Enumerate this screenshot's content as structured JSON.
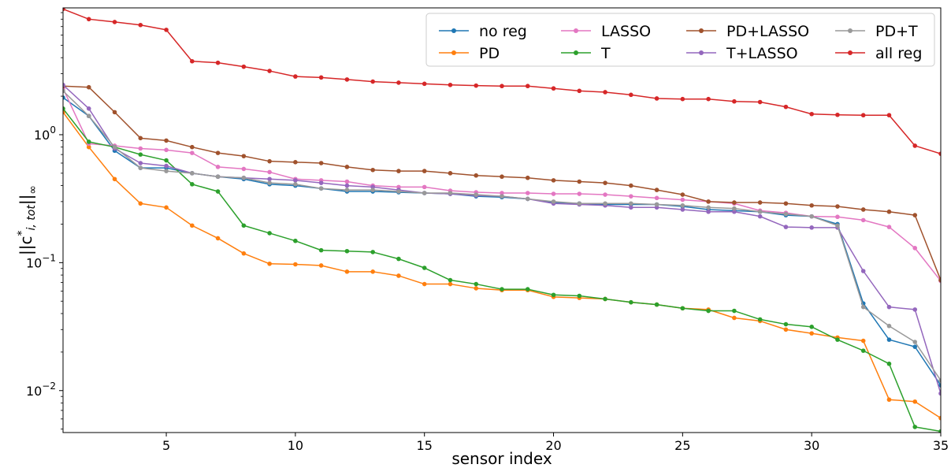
{
  "chart_data": {
    "type": "line",
    "title": "",
    "xlabel": "sensor index",
    "ylabel": "||c*_{i,tot}||_∞",
    "ylabel_parts": {
      "base": "||c",
      "sup": "*",
      "sub": "i, tot",
      "tail": "||",
      "tail_sub": "∞"
    },
    "xscale": "linear",
    "yscale": "log",
    "xlim": [
      1,
      35
    ],
    "ylim": [
      0.0047,
      9.8
    ],
    "xticks": [
      5,
      10,
      15,
      20,
      25,
      30,
      35
    ],
    "xtick_labels": [
      "5",
      "10",
      "15",
      "20",
      "25",
      "30",
      "35"
    ],
    "yticks": [
      0.01,
      0.1,
      1
    ],
    "ytick_labels": [
      {
        "base": "10",
        "exp": "−2"
      },
      {
        "base": "10",
        "exp": "−1"
      },
      {
        "base": "10",
        "exp": "0"
      }
    ],
    "grid": false,
    "legend": {
      "placement": "top-right",
      "columns": 4
    },
    "x": [
      1,
      2,
      3,
      4,
      5,
      6,
      7,
      8,
      9,
      10,
      11,
      12,
      13,
      14,
      15,
      16,
      17,
      18,
      19,
      20,
      21,
      22,
      23,
      24,
      25,
      26,
      27,
      28,
      29,
      30,
      31,
      32,
      33,
      34,
      35
    ],
    "series": [
      {
        "name": "no reg",
        "color": "#1f77b4",
        "values": [
          1.95,
          1.4,
          0.75,
          0.55,
          0.55,
          0.5,
          0.47,
          0.45,
          0.41,
          0.4,
          0.38,
          0.36,
          0.36,
          0.355,
          0.35,
          0.345,
          0.33,
          0.325,
          0.315,
          0.295,
          0.29,
          0.285,
          0.285,
          0.285,
          0.275,
          0.26,
          0.255,
          0.25,
          0.235,
          0.23,
          0.2,
          0.048,
          0.025,
          0.022,
          0.011
        ]
      },
      {
        "name": "PD",
        "color": "#ff7f0e",
        "values": [
          1.5,
          0.8,
          0.45,
          0.29,
          0.27,
          0.195,
          0.155,
          0.118,
          0.098,
          0.097,
          0.095,
          0.085,
          0.085,
          0.079,
          0.068,
          0.068,
          0.063,
          0.061,
          0.061,
          0.054,
          0.053,
          0.052,
          0.049,
          0.047,
          0.044,
          0.043,
          0.037,
          0.035,
          0.03,
          0.028,
          0.026,
          0.0245,
          0.0085,
          0.0082,
          0.0061
        ]
      },
      {
        "name": "LASSO",
        "color": "#e377c2",
        "values": [
          2.3,
          0.85,
          0.82,
          0.78,
          0.76,
          0.72,
          0.56,
          0.54,
          0.51,
          0.45,
          0.44,
          0.43,
          0.4,
          0.39,
          0.39,
          0.365,
          0.355,
          0.35,
          0.35,
          0.345,
          0.345,
          0.34,
          0.33,
          0.32,
          0.31,
          0.3,
          0.29,
          0.255,
          0.245,
          0.23,
          0.228,
          0.215,
          0.19,
          0.13,
          0.072
        ]
      },
      {
        "name": "T",
        "color": "#2ca02c",
        "values": [
          1.6,
          0.88,
          0.8,
          0.7,
          0.63,
          0.41,
          0.36,
          0.195,
          0.17,
          0.148,
          0.125,
          0.123,
          0.121,
          0.107,
          0.091,
          0.073,
          0.068,
          0.062,
          0.062,
          0.056,
          0.055,
          0.052,
          0.049,
          0.047,
          0.044,
          0.042,
          0.042,
          0.036,
          0.033,
          0.0315,
          0.025,
          0.0205,
          0.0162,
          0.0052,
          0.0048
        ]
      },
      {
        "name": "PD+LASSO",
        "color": "#a0522d",
        "values": [
          2.4,
          2.35,
          1.5,
          0.94,
          0.9,
          0.8,
          0.72,
          0.68,
          0.62,
          0.61,
          0.6,
          0.56,
          0.53,
          0.52,
          0.52,
          0.5,
          0.48,
          0.47,
          0.46,
          0.44,
          0.43,
          0.42,
          0.4,
          0.37,
          0.34,
          0.3,
          0.295,
          0.295,
          0.29,
          0.28,
          0.275,
          0.26,
          0.25,
          0.235,
          0.073
        ]
      },
      {
        "name": "T+LASSO",
        "color": "#9467bd",
        "values": [
          2.45,
          1.6,
          0.78,
          0.6,
          0.57,
          0.5,
          0.47,
          0.46,
          0.45,
          0.44,
          0.42,
          0.4,
          0.39,
          0.37,
          0.35,
          0.345,
          0.335,
          0.33,
          0.315,
          0.29,
          0.285,
          0.28,
          0.27,
          0.27,
          0.26,
          0.25,
          0.25,
          0.23,
          0.19,
          0.188,
          0.188,
          0.086,
          0.045,
          0.043,
          0.0095
        ]
      },
      {
        "name": "PD+T",
        "color": "#999999",
        "values": [
          2.2,
          1.4,
          0.8,
          0.55,
          0.52,
          0.5,
          0.47,
          0.46,
          0.42,
          0.41,
          0.38,
          0.37,
          0.37,
          0.36,
          0.35,
          0.35,
          0.34,
          0.33,
          0.315,
          0.3,
          0.29,
          0.29,
          0.29,
          0.285,
          0.28,
          0.27,
          0.265,
          0.25,
          0.24,
          0.23,
          0.195,
          0.045,
          0.032,
          0.024,
          0.012
        ]
      },
      {
        "name": "all reg",
        "color": "#d62728",
        "values": [
          9.6,
          8.0,
          7.6,
          7.2,
          6.6,
          3.75,
          3.65,
          3.4,
          3.15,
          2.85,
          2.8,
          2.7,
          2.6,
          2.55,
          2.5,
          2.45,
          2.42,
          2.4,
          2.4,
          2.3,
          2.2,
          2.15,
          2.05,
          1.92,
          1.9,
          1.9,
          1.82,
          1.8,
          1.65,
          1.45,
          1.43,
          1.42,
          1.42,
          0.82,
          0.71
        ]
      }
    ],
    "legend_order": [
      "no reg",
      "PD",
      "LASSO",
      "T",
      "PD+LASSO",
      "T+LASSO",
      "PD+T",
      "all reg"
    ]
  }
}
